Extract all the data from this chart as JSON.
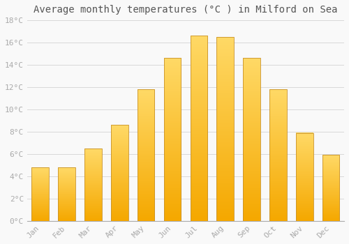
{
  "title": "Average monthly temperatures (°C ) in Milford on Sea",
  "months": [
    "Jan",
    "Feb",
    "Mar",
    "Apr",
    "May",
    "Jun",
    "Jul",
    "Aug",
    "Sep",
    "Oct",
    "Nov",
    "Dec"
  ],
  "temperatures": [
    4.8,
    4.8,
    6.5,
    8.6,
    11.8,
    14.6,
    16.6,
    16.5,
    14.6,
    11.8,
    7.9,
    5.9
  ],
  "bar_color_bottom": "#F5A800",
  "bar_color_top": "#FFD966",
  "bar_edge_color": "#C8922A",
  "background_color": "#F9F9F9",
  "grid_color": "#D8D8D8",
  "text_color": "#AAAAAA",
  "ylim": [
    0,
    18
  ],
  "yticks": [
    0,
    2,
    4,
    6,
    8,
    10,
    12,
    14,
    16,
    18
  ],
  "title_fontsize": 10,
  "tick_fontsize": 8,
  "font_family": "monospace"
}
